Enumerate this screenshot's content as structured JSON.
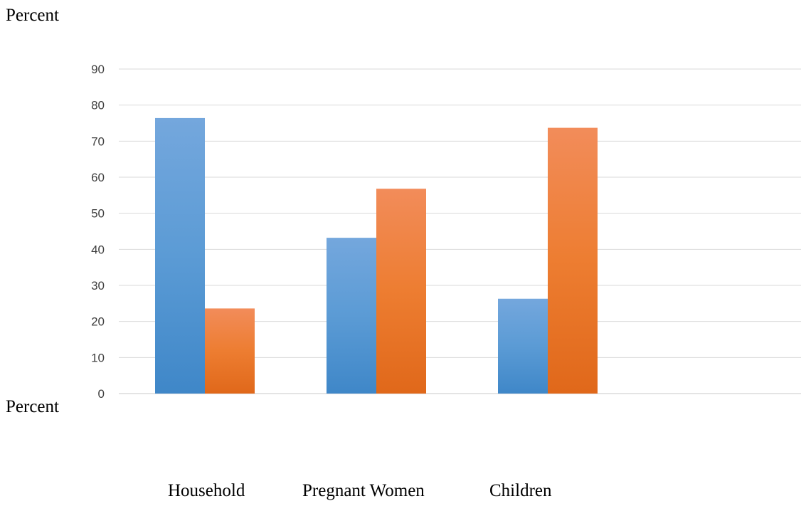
{
  "chart_data": {
    "type": "bar",
    "ylabel_top": "Percent",
    "ylabel_bottom": "Percent",
    "categories": [
      "Household",
      "Pregnant Women",
      "Children"
    ],
    "series": [
      {
        "values": [
          76.4,
          43.2,
          26.3
        ],
        "color": "#5b9bd5"
      },
      {
        "values": [
          23.6,
          56.8,
          73.7
        ],
        "color": "#ed7d31"
      }
    ],
    "ylim": [
      0,
      90
    ],
    "yticks": [
      0,
      10,
      20,
      30,
      40,
      50,
      60,
      70,
      80,
      90
    ],
    "grid": true
  }
}
